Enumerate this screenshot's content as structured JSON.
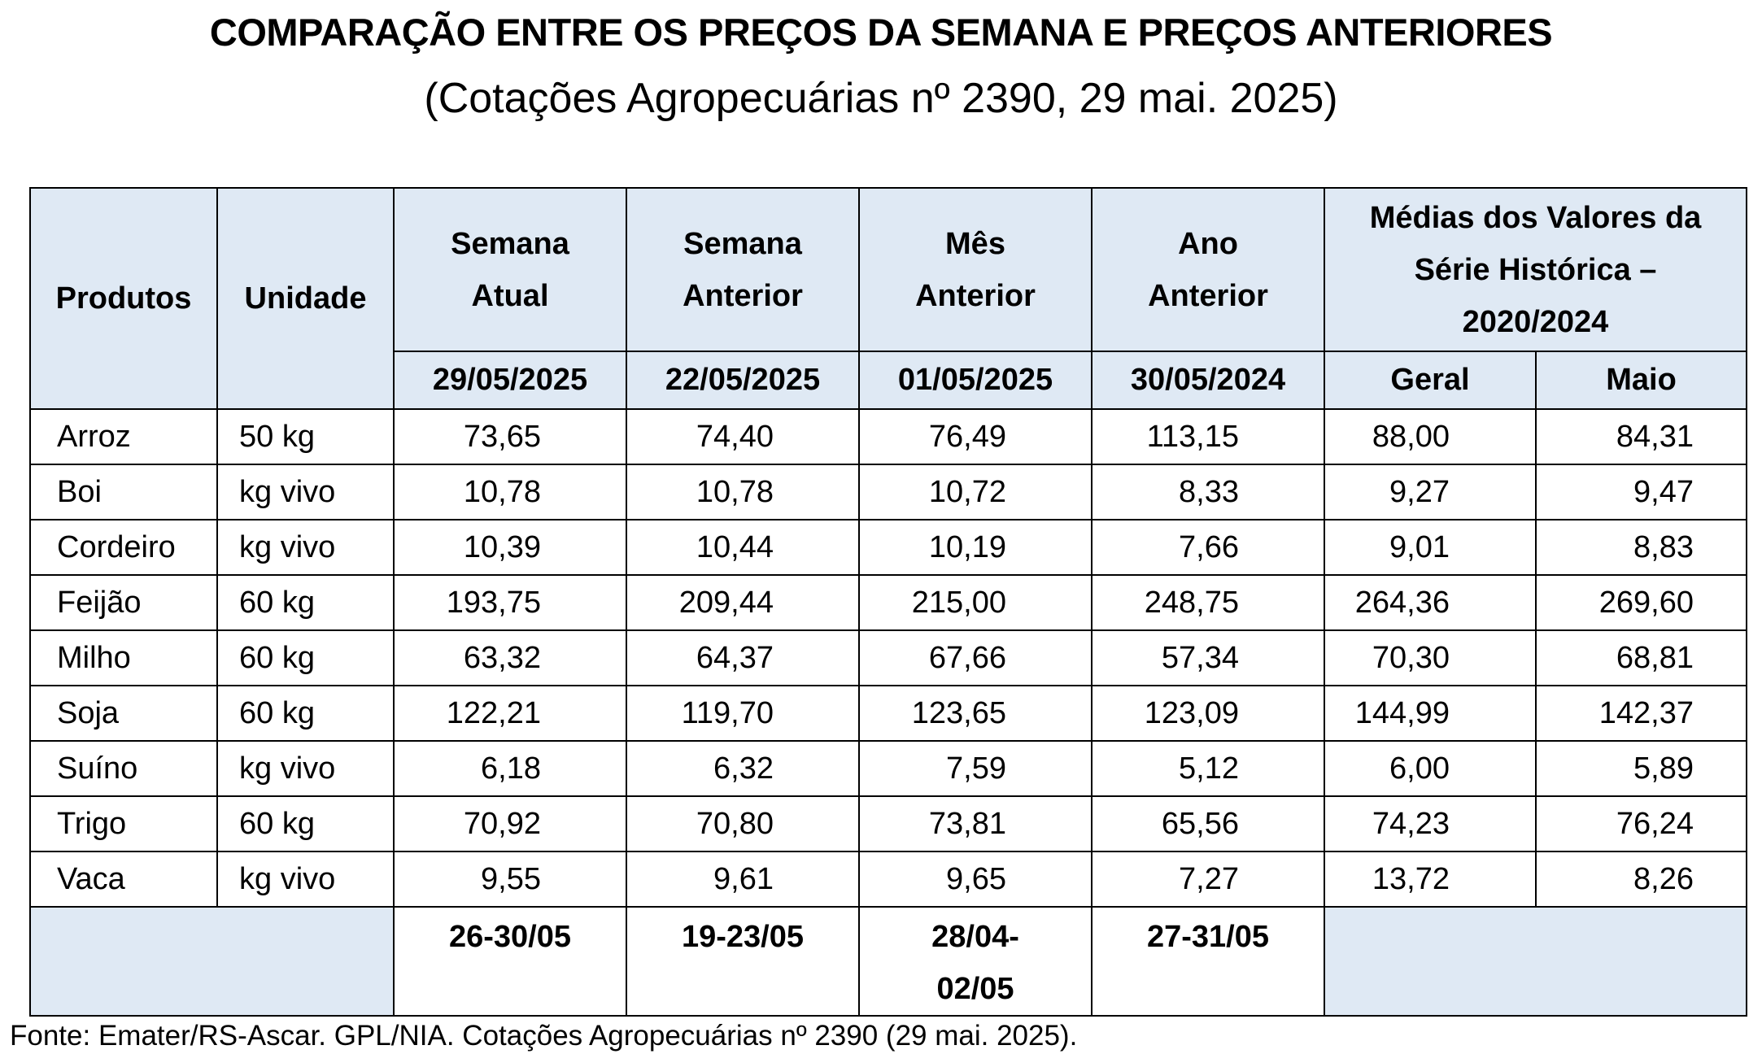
{
  "title": "COMPARAÇÃO ENTRE OS PREÇOS DA SEMANA E PREÇOS ANTERIORES",
  "subtitle": "(Cotações Agropecuárias nº 2390, 29 mai. 2025)",
  "headers": {
    "produtos": "Produtos",
    "unidade": "Unidade",
    "semana_atual_1": "Semana",
    "semana_atual_2": "Atual",
    "semana_anterior_1": "Semana",
    "semana_anterior_2": "Anterior",
    "mes_anterior_1": "Mês",
    "mes_anterior_2": "Anterior",
    "ano_anterior_1": "Ano",
    "ano_anterior_2": "Anterior",
    "medias_1": "Médias dos Valores da",
    "medias_2": "Série Histórica –",
    "medias_3": "2020/2024",
    "geral": "Geral",
    "maio": "Maio"
  },
  "dates": {
    "semana_atual": "29/05/2025",
    "semana_anterior": "22/05/2025",
    "mes_anterior": "01/05/2025",
    "ano_anterior": "30/05/2024"
  },
  "rows": [
    {
      "produto": "Arroz",
      "unidade": "50 kg",
      "semana_atual": "73,65",
      "semana_anterior": "74,40",
      "mes_anterior": "76,49",
      "ano_anterior": "113,15",
      "geral": "88,00",
      "maio": "84,31"
    },
    {
      "produto": "Boi",
      "unidade": "kg vivo",
      "semana_atual": "10,78",
      "semana_anterior": "10,78",
      "mes_anterior": "10,72",
      "ano_anterior": "8,33",
      "geral": "9,27",
      "maio": "9,47"
    },
    {
      "produto": "Cordeiro",
      "unidade": "kg vivo",
      "semana_atual": "10,39",
      "semana_anterior": "10,44",
      "mes_anterior": "10,19",
      "ano_anterior": "7,66",
      "geral": "9,01",
      "maio": "8,83"
    },
    {
      "produto": "Feijão",
      "unidade": "60 kg",
      "semana_atual": "193,75",
      "semana_anterior": "209,44",
      "mes_anterior": "215,00",
      "ano_anterior": "248,75",
      "geral": "264,36",
      "maio": "269,60"
    },
    {
      "produto": "Milho",
      "unidade": "60 kg",
      "semana_atual": "63,32",
      "semana_anterior": "64,37",
      "mes_anterior": "67,66",
      "ano_anterior": "57,34",
      "geral": "70,30",
      "maio": "68,81"
    },
    {
      "produto": "Soja",
      "unidade": "60 kg",
      "semana_atual": "122,21",
      "semana_anterior": "119,70",
      "mes_anterior": "123,65",
      "ano_anterior": "123,09",
      "geral": "144,99",
      "maio": "142,37"
    },
    {
      "produto": "Suíno",
      "unidade": "kg vivo",
      "semana_atual": "6,18",
      "semana_anterior": "6,32",
      "mes_anterior": "7,59",
      "ano_anterior": "5,12",
      "geral": "6,00",
      "maio": "5,89"
    },
    {
      "produto": "Trigo",
      "unidade": "60 kg",
      "semana_atual": "70,92",
      "semana_anterior": "70,80",
      "mes_anterior": "73,81",
      "ano_anterior": "65,56",
      "geral": "74,23",
      "maio": "76,24"
    },
    {
      "produto": "Vaca",
      "unidade": "kg vivo",
      "semana_atual": "9,55",
      "semana_anterior": "9,61",
      "mes_anterior": "9,65",
      "ano_anterior": "7,27",
      "geral": "13,72",
      "maio": "8,26"
    }
  ],
  "periods": {
    "semana_atual": "26-30/05",
    "semana_anterior": "19-23/05",
    "mes_anterior_1": "28/04-",
    "mes_anterior_2": "02/05",
    "ano_anterior": "27-31/05"
  },
  "source": "Fonte: Emater/RS-Ascar. GPL/NIA. Cotações Agropecuárias nº 2390 (29 mai. 2025)."
}
